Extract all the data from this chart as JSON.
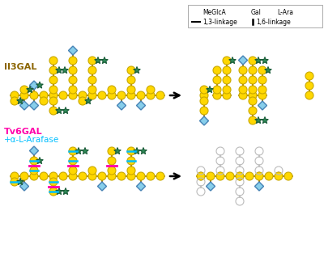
{
  "fig_width": 4.0,
  "fig_height": 3.13,
  "dpi": 100,
  "bg_color": "#ffffff",
  "gal_color": "#FFD700",
  "gal_edge": "#C8A800",
  "meglca_fill": "#87CEEB",
  "meglca_edge": "#4682B4",
  "lara_color": "#2E8B57",
  "lara_edge": "#1a5c38",
  "backbone_color": "#8B6400",
  "cleavage_pink": "#FF00AA",
  "cleavage_cyan": "#00BFFF",
  "ghost_color": "#bbbbbb",
  "title1": "II3GAL",
  "title1_color": "#8B6400",
  "title2_line1": "Tv6GAL",
  "title2_line2": "+α-L-Arafase",
  "title2_color1": "#FF00AA",
  "title2_color2": "#00BFFF",
  "R": 5.0,
  "DR": 5.5,
  "SR": 4.5,
  "step": 12
}
